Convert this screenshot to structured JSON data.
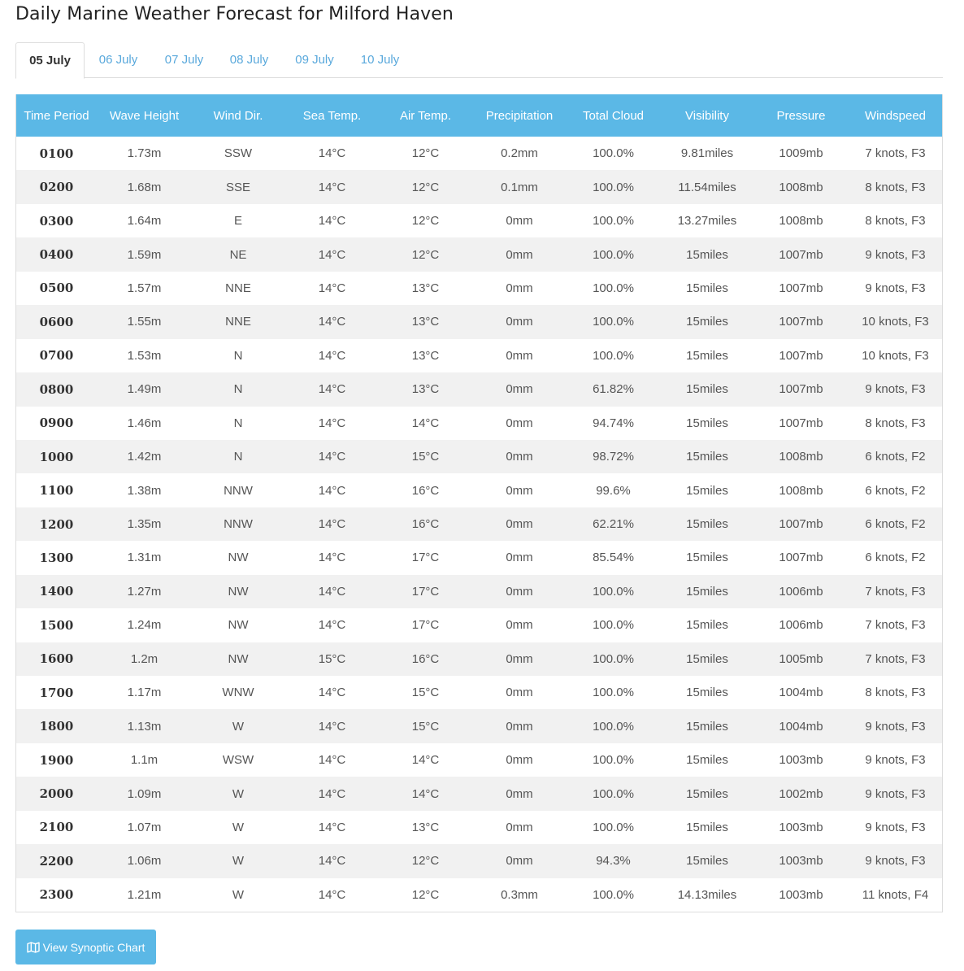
{
  "page": {
    "title": "Daily Marine Weather Forecast for Milford Haven"
  },
  "tabs": [
    {
      "label": "05 July",
      "active": true
    },
    {
      "label": "06 July",
      "active": false
    },
    {
      "label": "07 July",
      "active": false
    },
    {
      "label": "08 July",
      "active": false
    },
    {
      "label": "09 July",
      "active": false
    },
    {
      "label": "10 July",
      "active": false
    }
  ],
  "table": {
    "headers": [
      "Time Period",
      "Wave Height",
      "Wind Dir.",
      "Sea Temp.",
      "Air Temp.",
      "Precipitation",
      "Total Cloud",
      "Visibility",
      "Pressure",
      "Windspeed"
    ],
    "rows": [
      [
        "0100",
        "1.73m",
        "SSW",
        "14°C",
        "12°C",
        "0.2mm",
        "100.0%",
        "9.81miles",
        "1009mb",
        "7 knots, F3"
      ],
      [
        "0200",
        "1.68m",
        "SSE",
        "14°C",
        "12°C",
        "0.1mm",
        "100.0%",
        "11.54miles",
        "1008mb",
        "8 knots, F3"
      ],
      [
        "0300",
        "1.64m",
        "E",
        "14°C",
        "12°C",
        "0mm",
        "100.0%",
        "13.27miles",
        "1008mb",
        "8 knots, F3"
      ],
      [
        "0400",
        "1.59m",
        "NE",
        "14°C",
        "12°C",
        "0mm",
        "100.0%",
        "15miles",
        "1007mb",
        "9 knots, F3"
      ],
      [
        "0500",
        "1.57m",
        "NNE",
        "14°C",
        "13°C",
        "0mm",
        "100.0%",
        "15miles",
        "1007mb",
        "9 knots, F3"
      ],
      [
        "0600",
        "1.55m",
        "NNE",
        "14°C",
        "13°C",
        "0mm",
        "100.0%",
        "15miles",
        "1007mb",
        "10 knots, F3"
      ],
      [
        "0700",
        "1.53m",
        "N",
        "14°C",
        "13°C",
        "0mm",
        "100.0%",
        "15miles",
        "1007mb",
        "10 knots, F3"
      ],
      [
        "0800",
        "1.49m",
        "N",
        "14°C",
        "13°C",
        "0mm",
        "61.82%",
        "15miles",
        "1007mb",
        "9 knots, F3"
      ],
      [
        "0900",
        "1.46m",
        "N",
        "14°C",
        "14°C",
        "0mm",
        "94.74%",
        "15miles",
        "1007mb",
        "8 knots, F3"
      ],
      [
        "1000",
        "1.42m",
        "N",
        "14°C",
        "15°C",
        "0mm",
        "98.72%",
        "15miles",
        "1008mb",
        "6 knots, F2"
      ],
      [
        "1100",
        "1.38m",
        "NNW",
        "14°C",
        "16°C",
        "0mm",
        "99.6%",
        "15miles",
        "1008mb",
        "6 knots, F2"
      ],
      [
        "1200",
        "1.35m",
        "NNW",
        "14°C",
        "16°C",
        "0mm",
        "62.21%",
        "15miles",
        "1007mb",
        "6 knots, F2"
      ],
      [
        "1300",
        "1.31m",
        "NW",
        "14°C",
        "17°C",
        "0mm",
        "85.54%",
        "15miles",
        "1007mb",
        "6 knots, F2"
      ],
      [
        "1400",
        "1.27m",
        "NW",
        "14°C",
        "17°C",
        "0mm",
        "100.0%",
        "15miles",
        "1006mb",
        "7 knots, F3"
      ],
      [
        "1500",
        "1.24m",
        "NW",
        "14°C",
        "17°C",
        "0mm",
        "100.0%",
        "15miles",
        "1006mb",
        "7 knots, F3"
      ],
      [
        "1600",
        "1.2m",
        "NW",
        "15°C",
        "16°C",
        "0mm",
        "100.0%",
        "15miles",
        "1005mb",
        "7 knots, F3"
      ],
      [
        "1700",
        "1.17m",
        "WNW",
        "14°C",
        "15°C",
        "0mm",
        "100.0%",
        "15miles",
        "1004mb",
        "8 knots, F3"
      ],
      [
        "1800",
        "1.13m",
        "W",
        "14°C",
        "15°C",
        "0mm",
        "100.0%",
        "15miles",
        "1004mb",
        "9 knots, F3"
      ],
      [
        "1900",
        "1.1m",
        "WSW",
        "14°C",
        "14°C",
        "0mm",
        "100.0%",
        "15miles",
        "1003mb",
        "9 knots, F3"
      ],
      [
        "2000",
        "1.09m",
        "W",
        "14°C",
        "14°C",
        "0mm",
        "100.0%",
        "15miles",
        "1002mb",
        "9 knots, F3"
      ],
      [
        "2100",
        "1.07m",
        "W",
        "14°C",
        "13°C",
        "0mm",
        "100.0%",
        "15miles",
        "1003mb",
        "9 knots, F3"
      ],
      [
        "2200",
        "1.06m",
        "W",
        "14°C",
        "12°C",
        "0mm",
        "94.3%",
        "15miles",
        "1003mb",
        "9 knots, F3"
      ],
      [
        "2300",
        "1.21m",
        "W",
        "14°C",
        "12°C",
        "0.3mm",
        "100.0%",
        "14.13miles",
        "1003mb",
        "11 knots, F4"
      ]
    ]
  },
  "button": {
    "label": "View Synoptic Chart",
    "icon": "map-icon"
  },
  "colors": {
    "header_bg": "#5bb8e6",
    "tab_link": "#5aa9dc",
    "stripe": "#f1f1f1"
  }
}
